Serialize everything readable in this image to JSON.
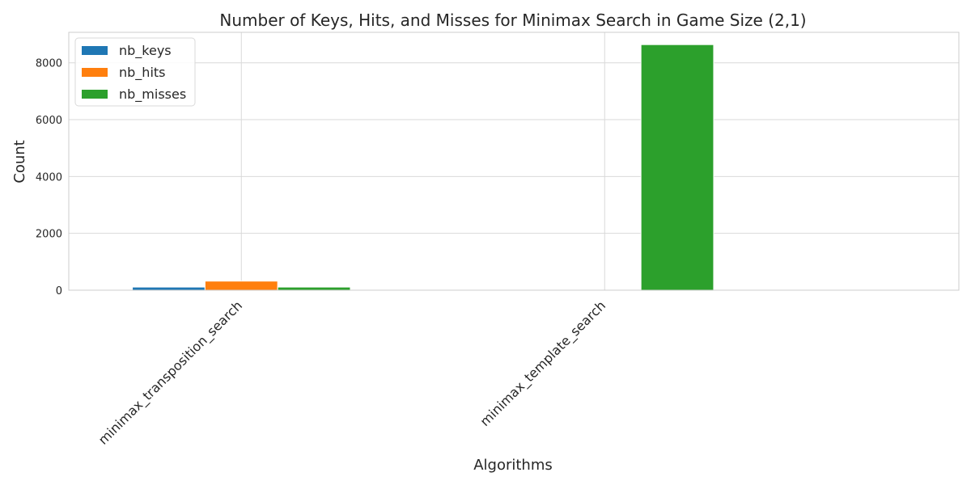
{
  "chart_data": {
    "type": "bar",
    "title": "Number of Keys, Hits, and Misses for Minimax Search in Game Size (2,1)",
    "xlabel": "Algorithms",
    "ylabel": "Count",
    "categories": [
      "minimax_transposition_search",
      "minimax_template_search"
    ],
    "series": [
      {
        "name": "nb_keys",
        "values": [
          110,
          0
        ],
        "color": "#1f77b4"
      },
      {
        "name": "nb_hits",
        "values": [
          320,
          0
        ],
        "color": "#ff7f0e"
      },
      {
        "name": "nb_misses",
        "values": [
          110,
          8640
        ],
        "color": "#2ca02c"
      }
    ],
    "ylim": [
      0,
      9072
    ],
    "yticks": [
      0,
      2000,
      4000,
      6000,
      8000
    ],
    "grid": true,
    "legend_position": "top-left"
  }
}
